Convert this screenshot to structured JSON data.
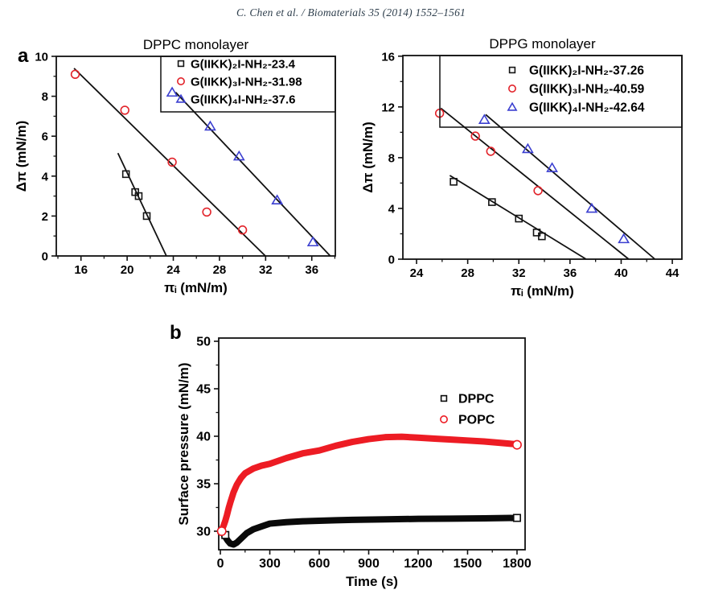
{
  "page": {
    "header": "C. Chen et al. / Biomaterials 35 (2014) 1552–1561",
    "panel_a": "a",
    "panel_b": "b"
  },
  "colors": {
    "black": "#141414",
    "red": "#e2232a",
    "blue": "#3b3fd0",
    "band_red": "#ed1c24",
    "band_black": "#0a0a0a"
  },
  "chart_data": [
    {
      "id": "dppc-monolayer",
      "panel": "a",
      "type": "scatter",
      "title": "DPPC monolayer",
      "xlabel": "πᵢ (mN/m)",
      "ylabel": "Δπ (mN/m)",
      "xlim": [
        13.86,
        38.04
      ],
      "ylim": [
        0,
        10
      ],
      "xticks": [
        16,
        20,
        24,
        28,
        32,
        36
      ],
      "yticks": [
        0,
        2,
        4,
        6,
        8,
        10
      ],
      "x_minor_step": 2,
      "y_minor_step": 1,
      "legend": {
        "boxed": true,
        "position": "top-right"
      },
      "series": [
        {
          "name": "G(IIKK)₂I-NH₂-23.4",
          "marker": "square",
          "color": "#141414",
          "points": [
            [
              19.9,
              4.1
            ],
            [
              20.7,
              3.2
            ],
            [
              21.0,
              3.0
            ],
            [
              21.7,
              2.0
            ]
          ],
          "fit_line": [
            [
              19.2,
              5.15
            ],
            [
              23.4,
              0
            ]
          ],
          "x_intercept": 23.4
        },
        {
          "name": "G(IIKK)₃I-NH₂-31.98",
          "marker": "circle",
          "color": "#e2232a",
          "points": [
            [
              15.5,
              9.1
            ],
            [
              19.8,
              7.3
            ],
            [
              23.9,
              4.7
            ],
            [
              26.9,
              2.2
            ],
            [
              30.0,
              1.3
            ]
          ],
          "fit_line": [
            [
              15.4,
              9.4
            ],
            [
              31.98,
              0
            ]
          ],
          "x_intercept": 31.98
        },
        {
          "name": "G(IIKK)₄I-NH₂-37.6",
          "marker": "triangle",
          "color": "#3b3fd0",
          "points": [
            [
              23.9,
              8.2
            ],
            [
              27.2,
              6.5
            ],
            [
              29.7,
              5.0
            ],
            [
              33.0,
              2.8
            ],
            [
              36.1,
              0.7
            ]
          ],
          "fit_line": [
            [
              24.2,
              8.2
            ],
            [
              37.6,
              0
            ]
          ],
          "x_intercept": 37.6
        }
      ]
    },
    {
      "id": "dppg-monolayer",
      "panel": "a",
      "type": "scatter",
      "title": "DPPG monolayer",
      "xlabel": "πᵢ (mN/m)",
      "ylabel": "Δπ (mN/m)",
      "xlim": [
        22.93,
        44.75
      ],
      "ylim": [
        0,
        16.05
      ],
      "xticks": [
        24,
        28,
        32,
        36,
        40,
        44
      ],
      "yticks": [
        0,
        4,
        8,
        12,
        16
      ],
      "x_minor_step": 2,
      "y_minor_step": 2,
      "legend": {
        "boxed": true,
        "position": "top-right"
      },
      "series": [
        {
          "name": "G(IIKK)₂I-NH₂-37.26",
          "marker": "square",
          "color": "#141414",
          "points": [
            [
              26.9,
              6.1
            ],
            [
              29.9,
              4.5
            ],
            [
              32.0,
              3.2
            ],
            [
              33.4,
              2.1
            ],
            [
              33.8,
              1.8
            ]
          ],
          "fit_line": [
            [
              26.6,
              6.6
            ],
            [
              37.26,
              0
            ]
          ],
          "x_intercept": 37.26
        },
        {
          "name": "G(IIKK)₃I-NH₂-40.59",
          "marker": "circle",
          "color": "#e2232a",
          "points": [
            [
              25.8,
              11.5
            ],
            [
              28.6,
              9.7
            ],
            [
              29.8,
              8.5
            ],
            [
              33.5,
              5.4
            ]
          ],
          "fit_line": [
            [
              25.9,
              11.9
            ],
            [
              40.59,
              0
            ]
          ],
          "x_intercept": 40.59
        },
        {
          "name": "G(IIKK)₄I-NH₂-42.64",
          "marker": "triangle",
          "color": "#3b3fd0",
          "points": [
            [
              29.3,
              11.0
            ],
            [
              32.7,
              8.7
            ],
            [
              34.6,
              7.2
            ],
            [
              37.7,
              4.0
            ],
            [
              40.2,
              1.6
            ]
          ],
          "fit_line": [
            [
              29.4,
              11.4
            ],
            [
              42.64,
              0
            ]
          ],
          "x_intercept": 42.64
        }
      ]
    },
    {
      "id": "adsorption-kinetics",
      "panel": "b",
      "type": "line",
      "title": "",
      "xlabel": "Time (s)",
      "ylabel": "Surface pressure (mN/m)",
      "xlim": [
        -10,
        1849
      ],
      "ylim": [
        28.05,
        50.34
      ],
      "xticks": [
        0,
        300,
        600,
        900,
        1200,
        1500,
        1800
      ],
      "yticks": [
        30,
        35,
        40,
        45,
        50
      ],
      "x_minor_step": 150,
      "y_minor_step": 2.5,
      "legend": {
        "boxed": false,
        "position": "right-center"
      },
      "series": [
        {
          "name": "DPPC",
          "marker": "square",
          "color": "#0a0a0a",
          "line": [
            [
              0,
              29.9
            ],
            [
              15,
              29.8
            ],
            [
              30,
              29.4
            ],
            [
              45,
              29.0
            ],
            [
              60,
              28.7
            ],
            [
              80,
              28.6
            ],
            [
              100,
              28.8
            ],
            [
              130,
              29.3
            ],
            [
              160,
              29.8
            ],
            [
              200,
              30.2
            ],
            [
              250,
              30.5
            ],
            [
              300,
              30.8
            ],
            [
              400,
              30.95
            ],
            [
              500,
              31.05
            ],
            [
              600,
              31.1
            ],
            [
              700,
              31.15
            ],
            [
              800,
              31.2
            ],
            [
              1000,
              31.25
            ],
            [
              1200,
              31.3
            ],
            [
              1400,
              31.32
            ],
            [
              1600,
              31.36
            ],
            [
              1800,
              31.4
            ]
          ],
          "open_markers": [
            [
              30,
              29.6
            ],
            [
              1800,
              31.4
            ]
          ]
        },
        {
          "name": "POPC",
          "marker": "circle",
          "color": "#ed1c24",
          "line": [
            [
              0,
              29.9
            ],
            [
              10,
              30.2
            ],
            [
              20,
              30.6
            ],
            [
              30,
              31.1
            ],
            [
              40,
              31.7
            ],
            [
              50,
              32.4
            ],
            [
              60,
              33.0
            ],
            [
              80,
              34.1
            ],
            [
              100,
              34.9
            ],
            [
              125,
              35.6
            ],
            [
              150,
              36.1
            ],
            [
              200,
              36.6
            ],
            [
              250,
              36.9
            ],
            [
              300,
              37.1
            ],
            [
              400,
              37.7
            ],
            [
              500,
              38.2
            ],
            [
              600,
              38.5
            ],
            [
              700,
              39.0
            ],
            [
              800,
              39.4
            ],
            [
              900,
              39.7
            ],
            [
              1000,
              39.9
            ],
            [
              1100,
              39.95
            ],
            [
              1200,
              39.85
            ],
            [
              1300,
              39.75
            ],
            [
              1400,
              39.65
            ],
            [
              1500,
              39.55
            ],
            [
              1600,
              39.45
            ],
            [
              1700,
              39.3
            ],
            [
              1800,
              39.15
            ]
          ],
          "open_markers": [
            [
              8,
              30.0
            ],
            [
              1800,
              39.1
            ]
          ]
        }
      ]
    }
  ]
}
